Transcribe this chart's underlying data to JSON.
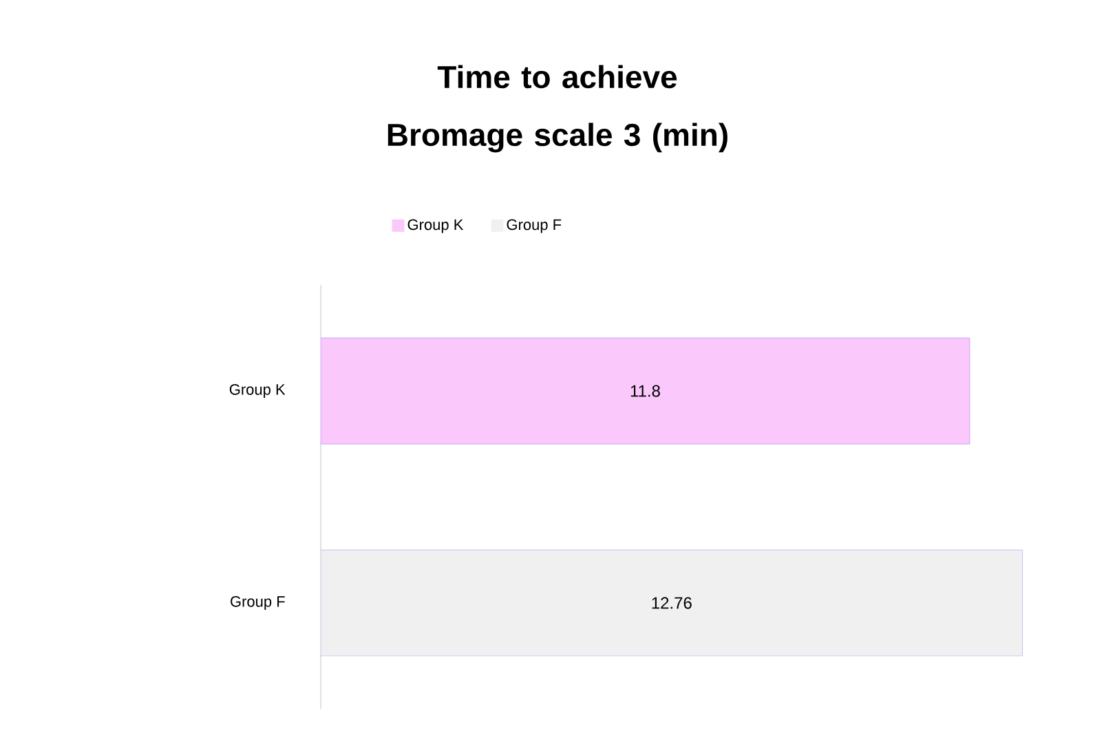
{
  "chart_data": {
    "type": "bar",
    "orientation": "horizontal",
    "title": "Time to achieve Bromage scale 3 (min)",
    "categories": [
      "Group K",
      "Group F"
    ],
    "series": [
      {
        "name": "Group K",
        "color": "#fbc8fb",
        "values": [
          11.8,
          null
        ]
      },
      {
        "name": "Group F",
        "color": "#f0f0f0",
        "values": [
          null,
          12.76
        ]
      }
    ],
    "data_labels": true,
    "legend": "top",
    "tick_labels": "y"
  }
}
